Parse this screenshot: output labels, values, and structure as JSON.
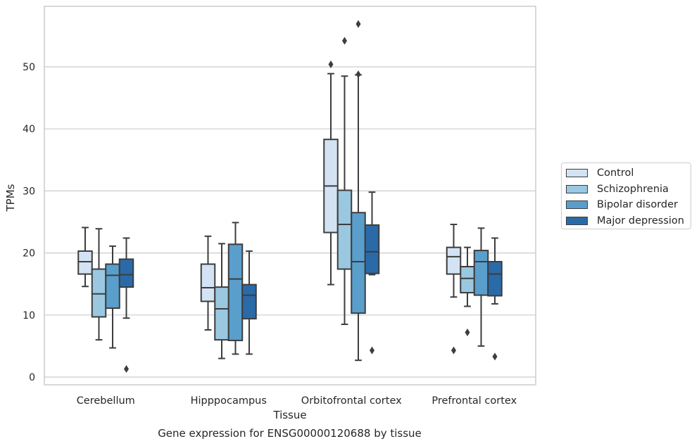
{
  "chart_data": {
    "type": "boxplot",
    "title": "",
    "caption": "Gene expression for ENSG00000120688 by tissue",
    "xlabel": "Tissue",
    "ylabel": "TPMs",
    "ylim": [
      -1.3,
      59.5
    ],
    "yticks": [
      0,
      10,
      20,
      30,
      40,
      50
    ],
    "grid": "horizontal",
    "legend_position": "right",
    "categories": [
      "Cerebellum",
      "Hipppocampus",
      "Orbitofrontal cortex",
      "Prefrontal cortex"
    ],
    "series": [
      {
        "name": "Control",
        "color": "#d3e3f3",
        "boxes": [
          {
            "whislo": 14.6,
            "q1": 16.6,
            "med": 18.6,
            "q3": 20.3,
            "whishi": 24.1,
            "fliers": []
          },
          {
            "whislo": 7.6,
            "q1": 12.2,
            "med": 14.4,
            "q3": 18.2,
            "whishi": 22.7,
            "fliers": []
          },
          {
            "whislo": 14.9,
            "q1": 23.3,
            "med": 30.8,
            "q3": 38.3,
            "whishi": 48.9,
            "fliers": [
              50.4
            ]
          },
          {
            "whislo": 12.9,
            "q1": 16.6,
            "med": 19.4,
            "q3": 20.9,
            "whishi": 24.6,
            "fliers": [
              4.3
            ]
          }
        ]
      },
      {
        "name": "Schizophrenia",
        "color": "#9ac8e0",
        "boxes": [
          {
            "whislo": 6.0,
            "q1": 9.7,
            "med": 13.4,
            "q3": 17.4,
            "whishi": 23.9,
            "fliers": []
          },
          {
            "whislo": 3.0,
            "q1": 6.0,
            "med": 11.0,
            "q3": 14.5,
            "whishi": 21.5,
            "fliers": []
          },
          {
            "whislo": 8.5,
            "q1": 17.4,
            "med": 24.6,
            "q3": 30.1,
            "whishi": 48.5,
            "fliers": [
              54.2
            ]
          },
          {
            "whislo": 11.4,
            "q1": 13.6,
            "med": 15.9,
            "q3": 17.8,
            "whishi": 20.9,
            "fliers": [
              7.2
            ]
          }
        ]
      },
      {
        "name": "Bipolar disorder",
        "color": "#5a9ecc",
        "boxes": [
          {
            "whislo": 4.7,
            "q1": 11.1,
            "med": 16.4,
            "q3": 18.2,
            "whishi": 21.1,
            "fliers": []
          },
          {
            "whislo": 3.7,
            "q1": 5.9,
            "med": 15.8,
            "q3": 21.4,
            "whishi": 24.9,
            "fliers": []
          },
          {
            "whislo": 2.7,
            "q1": 10.3,
            "med": 18.6,
            "q3": 26.5,
            "whishi": 48.7,
            "fliers": [
              56.9,
              48.8
            ]
          },
          {
            "whislo": 5.0,
            "q1": 13.2,
            "med": 18.6,
            "q3": 20.4,
            "whishi": 24.0,
            "fliers": []
          }
        ]
      },
      {
        "name": "Major depression",
        "color": "#2b6aa8",
        "boxes": [
          {
            "whislo": 9.5,
            "q1": 14.5,
            "med": 16.5,
            "q3": 19.0,
            "whishi": 22.4,
            "fliers": [
              1.3
            ]
          },
          {
            "whislo": 3.7,
            "q1": 9.4,
            "med": 13.2,
            "q3": 14.9,
            "whishi": 20.3,
            "fliers": []
          },
          {
            "whislo": 16.5,
            "q1": 16.7,
            "med": 20.2,
            "q3": 24.5,
            "whishi": 29.8,
            "fliers": [
              4.3
            ]
          },
          {
            "whislo": 11.8,
            "q1": 13.1,
            "med": 16.6,
            "q3": 18.6,
            "whishi": 22.4,
            "fliers": [
              3.3
            ]
          }
        ]
      }
    ]
  }
}
